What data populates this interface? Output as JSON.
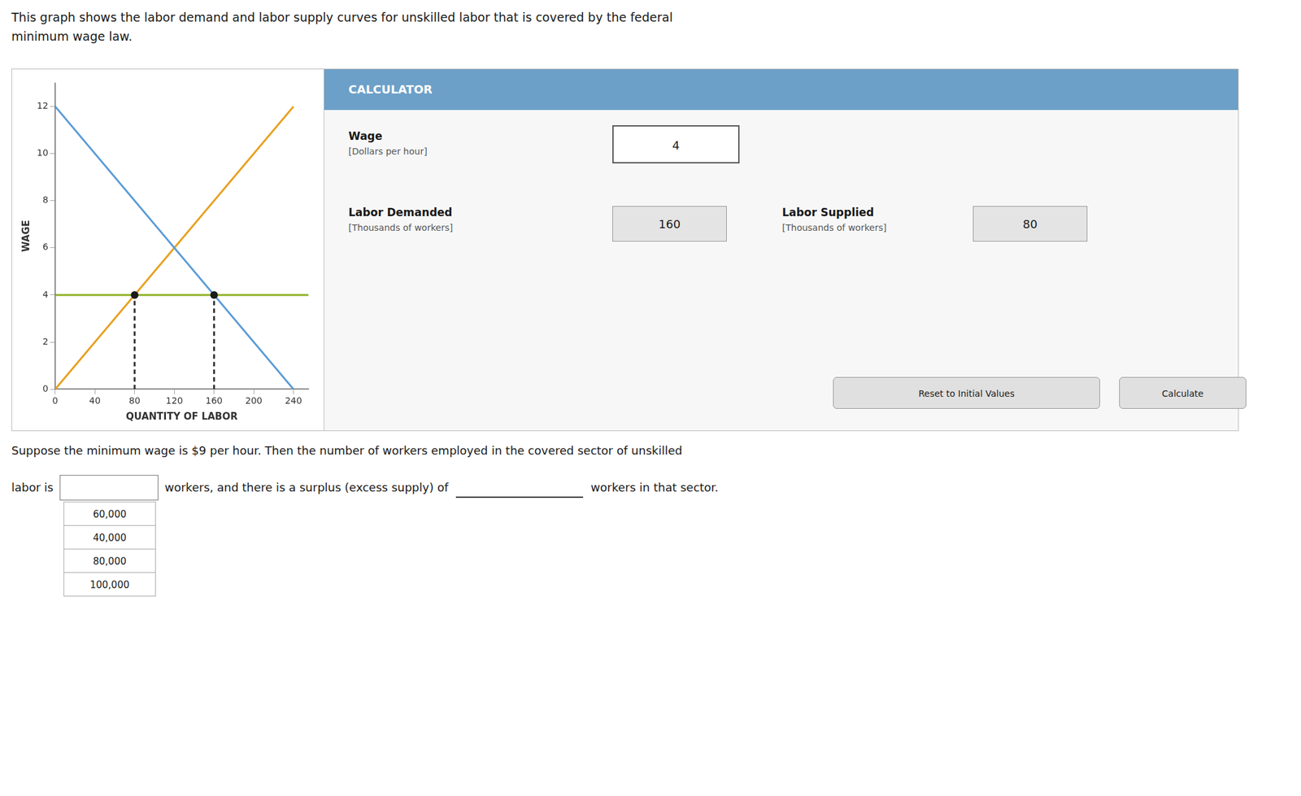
{
  "intro": [
    "This graph shows the labor demand and labor supply curves for unskilled labor that is covered by the federal",
    "minimum wage law."
  ],
  "chart_data": {
    "type": "line",
    "xlabel": "QUANTITY OF LABOR",
    "ylabel": "WAGE",
    "xlim": [
      0,
      255
    ],
    "xticks": [
      0,
      40,
      80,
      120,
      160,
      200,
      240
    ],
    "ylim": [
      0,
      13
    ],
    "yticks": [
      0,
      2,
      4,
      6,
      8,
      10,
      12
    ],
    "grid": false,
    "series": [
      {
        "type": "line",
        "color": "#5b9bd5",
        "line_style": "solid",
        "x": [
          0,
          240
        ],
        "values": [
          12,
          0
        ]
      },
      {
        "type": "line",
        "color": "#e8a020",
        "line_style": "solid",
        "x": [
          0,
          240
        ],
        "values": [
          0,
          12
        ]
      },
      {
        "type": "line",
        "color": "#8db021",
        "line_style": "solid",
        "x": [
          0,
          255
        ],
        "values": [
          4,
          4
        ]
      },
      {
        "type": "line",
        "color": "#333333",
        "line_style": "dashed",
        "x": [
          80,
          80
        ],
        "values": [
          0,
          4
        ]
      },
      {
        "type": "line",
        "color": "#333333",
        "line_style": "dashed",
        "x": [
          160,
          160
        ],
        "values": [
          0,
          4
        ]
      },
      {
        "type": "scatter",
        "color": "#1a1a1a",
        "marker": "circle",
        "x": [
          80,
          160
        ],
        "values": [
          4,
          4
        ]
      }
    ]
  },
  "calculator": {
    "header": "CALCULATOR",
    "header_color": "#6ca0c8",
    "wage_label": "Wage",
    "wage_sublabel": "[Dollars per hour]",
    "wage_value": 4,
    "ld_label": "Labor Demanded",
    "ld_sublabel": "[Thousands of workers]",
    "ld_value": 160,
    "ls_label": "Labor Supplied",
    "ls_sublabel": "[Thousands of workers]",
    "ls_value": 80,
    "buttons": [
      "Reset to Initial Values",
      "Calculate"
    ]
  },
  "question": {
    "line1": "Suppose the minimum wage is $9 per hour. Then the number of workers employed in the covered sector of unskilled",
    "before_blank": "labor is",
    "middle": "workers, and there is a surplus (excess supply) of",
    "end": "workers in that sector.",
    "dropdown": [
      "60,000",
      "40,000",
      "80,000",
      "100,000"
    ]
  }
}
